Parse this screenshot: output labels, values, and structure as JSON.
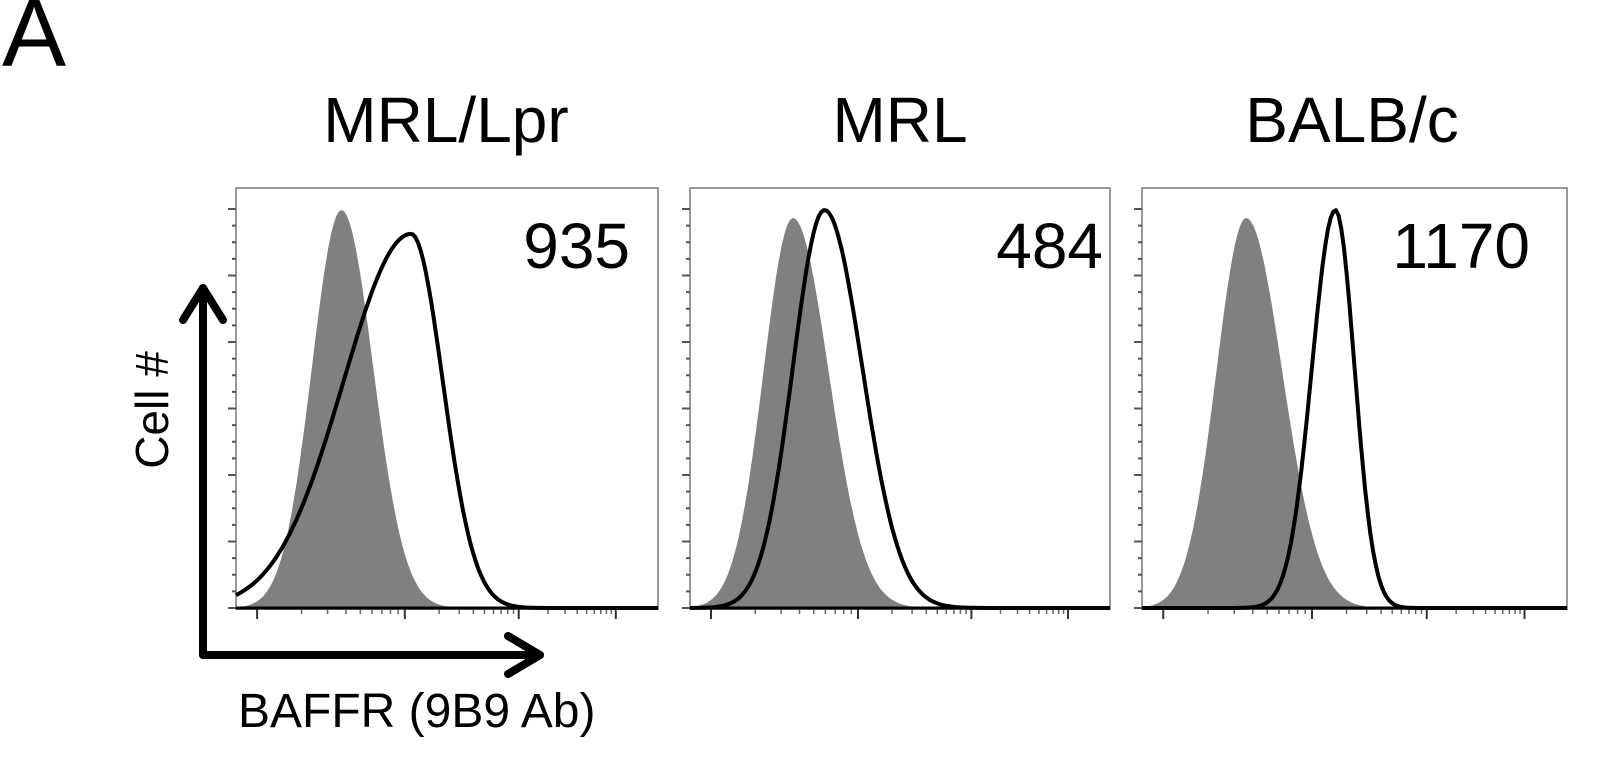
{
  "figure": {
    "panel_label": "A",
    "y_axis_label": "Cell #",
    "x_axis_label": "BAFFR (9B9 Ab)"
  },
  "colors": {
    "isotype_fill": "#808080",
    "stain_line": "#000000",
    "frame": "#9a9a9a"
  },
  "chart_data": {
    "type": "area",
    "subtype": "flow-cytometry-histogram-overlay",
    "title": "",
    "xlabel": "BAFFR (9B9 Ab)",
    "ylabel": "Cell #",
    "x_scale": "log (arbitrary fluorescence units, no tick labels)",
    "ylim": [
      0,
      100
    ],
    "grid": false,
    "legend": "none (gray filled = isotype/control, black line = BAFFR stain)",
    "panels": [
      {
        "title": "MRL/Lpr",
        "annotation_value": "935",
        "series": [
          {
            "name": "control (filled gray)",
            "peak_x_frac": 0.25,
            "peak_height": 100,
            "sd_left": 0.07,
            "sd_right": 0.075
          },
          {
            "name": "BAFFR (black line)",
            "peak_x_frac": 0.415,
            "peak_height": 94,
            "sd_left": 0.16,
            "sd_right": 0.075
          }
        ]
      },
      {
        "title": "MRL",
        "annotation_value": "484",
        "series": [
          {
            "name": "control (filled gray)",
            "peak_x_frac": 0.245,
            "peak_height": 98,
            "sd_left": 0.07,
            "sd_right": 0.085
          },
          {
            "name": "BAFFR (black line)",
            "peak_x_frac": 0.32,
            "peak_height": 100,
            "sd_left": 0.075,
            "sd_right": 0.09
          }
        ]
      },
      {
        "title": "BALB/c",
        "annotation_value": "1170",
        "series": [
          {
            "name": "control (filled gray)",
            "peak_x_frac": 0.245,
            "peak_height": 98,
            "sd_left": 0.07,
            "sd_right": 0.085
          },
          {
            "name": "BAFFR (black line)",
            "peak_x_frac": 0.455,
            "peak_height": 100,
            "sd_left": 0.055,
            "sd_right": 0.045
          }
        ]
      }
    ]
  }
}
